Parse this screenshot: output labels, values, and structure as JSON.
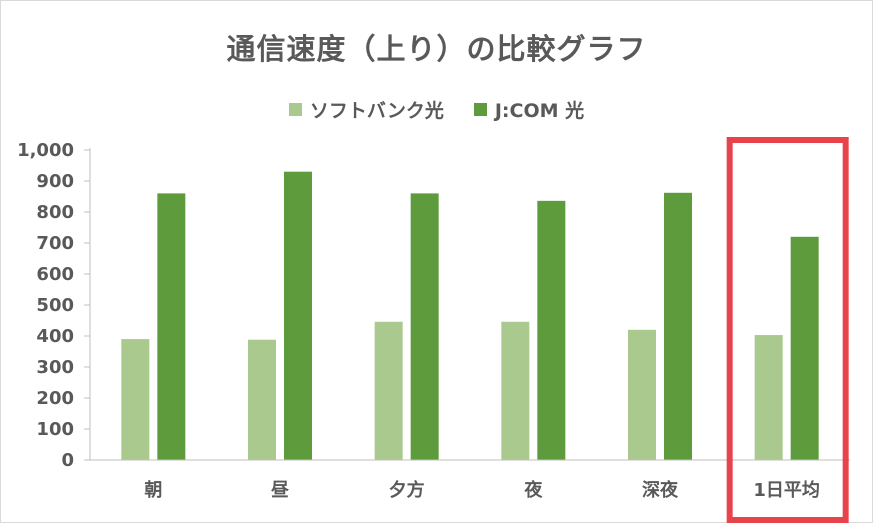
{
  "chart_data": {
    "type": "bar",
    "title": "通信速度（上り）の比較グラフ",
    "categories": [
      "朝",
      "昼",
      "夕方",
      "夜",
      "深夜",
      "1日平均"
    ],
    "series": [
      {
        "name": "ソフトバンク光",
        "color": "#a9c98f",
        "values": [
          390,
          388,
          446,
          446,
          420,
          403
        ]
      },
      {
        "name": "J:COM 光",
        "color": "#5e9b3c",
        "values": [
          860,
          930,
          860,
          836,
          862,
          720
        ]
      }
    ],
    "ylim": [
      0,
      1000
    ],
    "yticks": [
      "0",
      "100",
      "200",
      "300",
      "400",
      "500",
      "600",
      "700",
      "800",
      "900",
      "1,000"
    ],
    "grid": false,
    "legend_position": "top",
    "highlight": {
      "category": "1日平均",
      "color": "#e8424a"
    }
  }
}
